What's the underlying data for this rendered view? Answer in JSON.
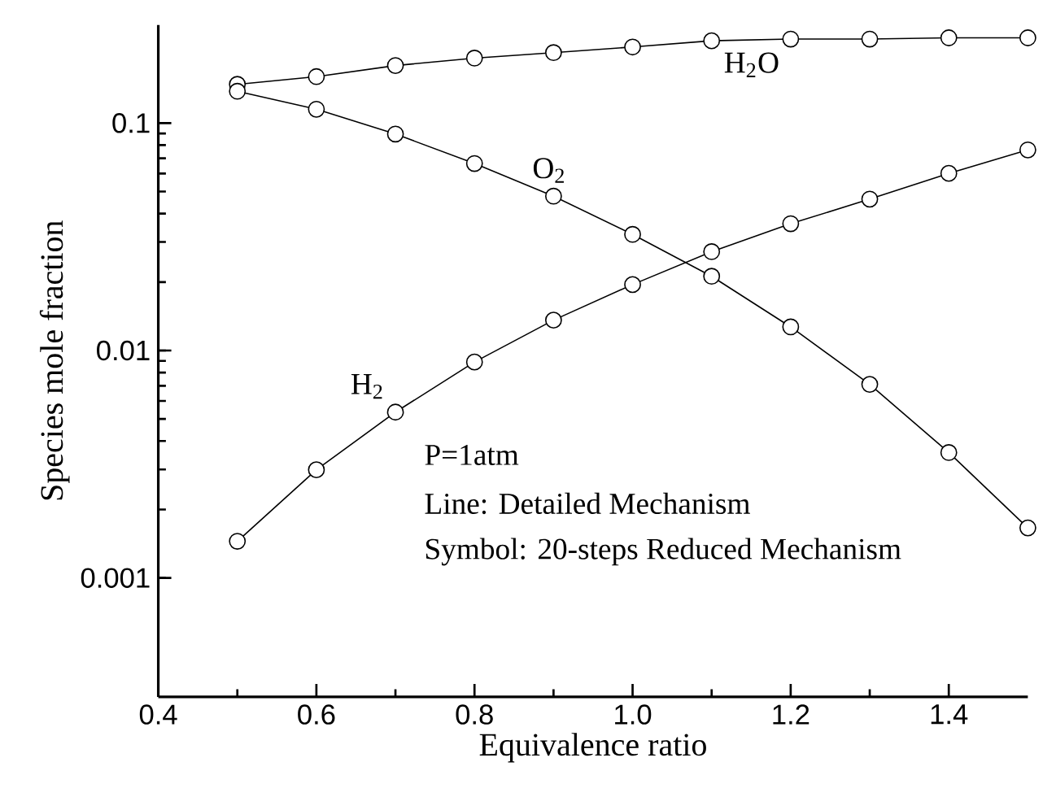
{
  "chart_data": {
    "type": "line",
    "xlabel": "Equivalence ratio",
    "ylabel": "Species mole fraction",
    "log": "y",
    "marker": "circle",
    "line_style": "solid",
    "xlim": [
      0.4,
      1.5
    ],
    "ylim": [
      0.0003,
      0.27
    ],
    "xticks": [
      0.4,
      0.6,
      0.8,
      {
        "value": 1.0,
        "label": "1.0"
      },
      1.2,
      1.4
    ],
    "yticks": [
      0.001,
      0.01,
      0.1
    ],
    "x": [
      0.5,
      0.6,
      0.7,
      0.8,
      0.9,
      1.0,
      1.1,
      1.2,
      1.3,
      1.4,
      1.5
    ],
    "series": [
      {
        "name": "H$_{2}$O",
        "color": "#000000",
        "values": [
          0.148,
          0.16,
          0.179,
          0.193,
          0.204,
          0.216,
          0.23,
          0.234,
          0.234,
          0.237,
          0.237
        ]
      },
      {
        "name": "O$_{2}$",
        "color": "#000000",
        "values": [
          0.138,
          0.115,
          0.0895,
          0.0664,
          0.0477,
          0.0324,
          0.0212,
          0.0127,
          0.0071,
          0.00356,
          0.00166
        ]
      },
      {
        "name": "H$_{2}$",
        "color": "#000000",
        "values": [
          0.00145,
          0.00299,
          0.00536,
          0.0089,
          0.0136,
          0.0195,
          0.0272,
          0.0361,
          0.0463,
          0.0601,
          0.0762
        ]
      }
    ],
    "annotations": [
      "P=1atm",
      "Line: Detailed Mechanism",
      "Symbol: 20-steps Reduced Mechanism"
    ]
  }
}
